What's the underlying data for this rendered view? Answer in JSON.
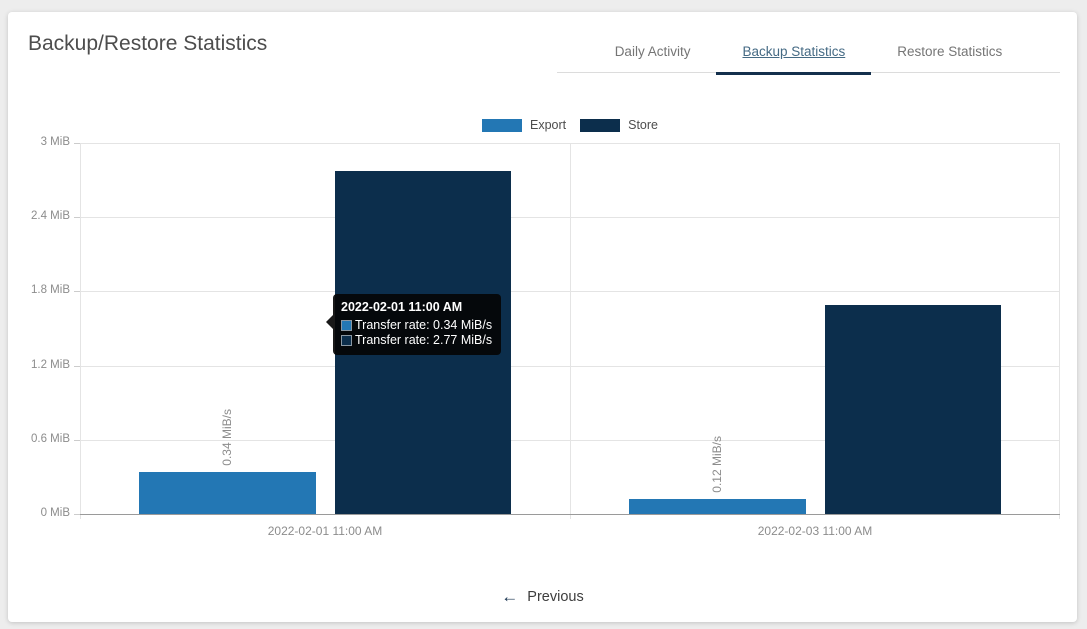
{
  "header": {
    "title": "Backup/Restore Statistics",
    "tabs": [
      {
        "label": "Daily Activity",
        "active": false
      },
      {
        "label": "Backup Statistics",
        "active": true
      },
      {
        "label": "Restore Statistics",
        "active": false
      }
    ]
  },
  "chart_data": {
    "type": "bar",
    "title": "",
    "categories": [
      "2022-02-01 11:00 AM",
      "2022-02-03 11:00 AM"
    ],
    "series": [
      {
        "name": "Export",
        "color": "#2377b4",
        "values": [
          0.34,
          0.12
        ],
        "bar_labels": [
          "0.34 MiB/s",
          "0.12 MiB/s"
        ]
      },
      {
        "name": "Store",
        "color": "#0c2e4c",
        "values": [
          2.77,
          1.69
        ],
        "bar_labels": [
          "",
          ""
        ]
      }
    ],
    "ylabel": "MiB",
    "ymax": 3,
    "yticks": [
      {
        "value": 3,
        "label": "3 MiB"
      },
      {
        "value": 2.4,
        "label": "2.4 MiB"
      },
      {
        "value": 1.8,
        "label": "1.8 MiB"
      },
      {
        "value": 1.2,
        "label": "1.2 MiB"
      },
      {
        "value": 0.6,
        "label": "0.6 MiB"
      },
      {
        "value": 0,
        "label": "0 MiB"
      }
    ],
    "grid": true,
    "legend_position": "top"
  },
  "tooltip": {
    "title": "2022-02-01 11:00 AM",
    "rows": [
      {
        "color": "#2377b4",
        "text": "Transfer rate: 0.34 MiB/s"
      },
      {
        "color": "#0c2e4c",
        "text": "Transfer rate: 2.77 MiB/s"
      }
    ]
  },
  "footer": {
    "previous_label": "Previous",
    "arrow_glyph": "←"
  },
  "colors": {
    "export": "#2377b4",
    "store": "#0c2e4c",
    "active_tab_text": "#456a84",
    "tab_underline": "#14304d",
    "page_bg": "#ededed"
  }
}
